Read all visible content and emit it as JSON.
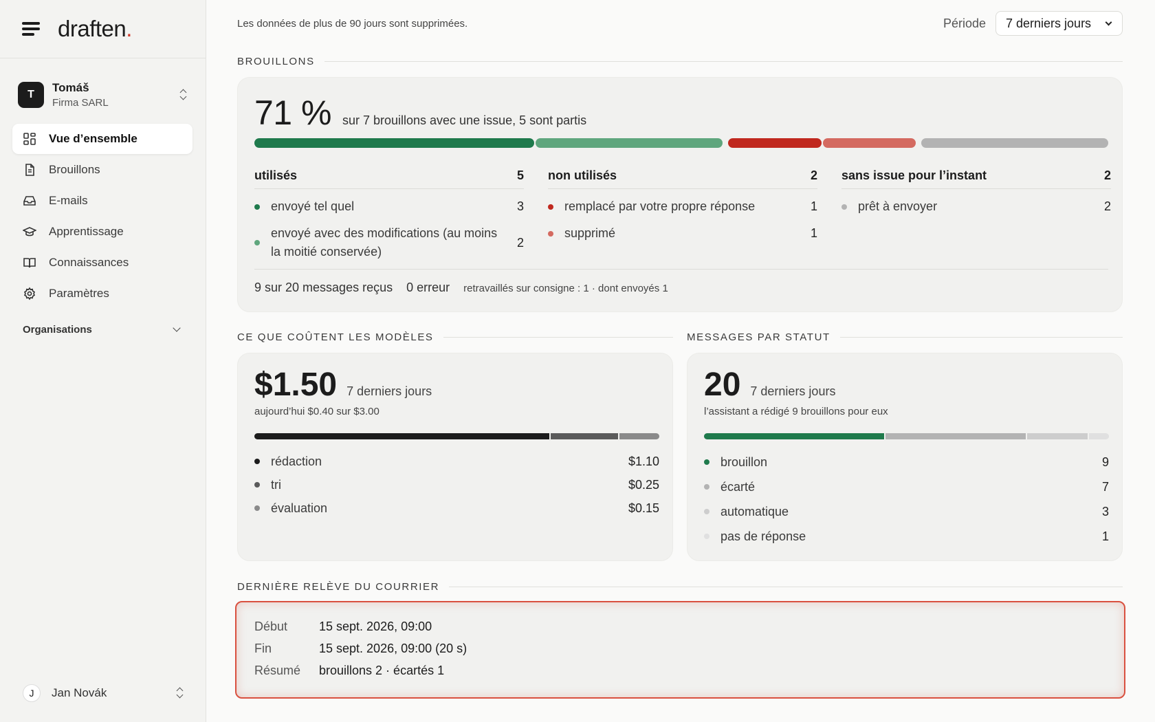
{
  "app": {
    "logo_text": "draften",
    "logo_dot": "."
  },
  "sidebar": {
    "account": {
      "initial": "T",
      "name": "Tomáš",
      "org": "Firma SARL"
    },
    "items": [
      {
        "label": "Vue d’ensemble",
        "icon": "grid-icon",
        "active": true
      },
      {
        "label": "Brouillons",
        "icon": "document-icon"
      },
      {
        "label": "E-mails",
        "icon": "inbox-icon"
      },
      {
        "label": "Apprentissage",
        "icon": "graduation-cap-icon"
      },
      {
        "label": "Connaissances",
        "icon": "book-icon"
      },
      {
        "label": "Paramètres",
        "icon": "gear-icon"
      }
    ],
    "organizations_label": "Organisations",
    "user": {
      "initial": "J",
      "name": "Jan Novák"
    }
  },
  "header": {
    "retention_notice": "Les données de plus de 90 jours sont supprimées.",
    "period_label": "Période",
    "period_value": "7 derniers jours"
  },
  "drafts": {
    "section_title": "BROUILLONS",
    "percent": "71 %",
    "summary": "sur 7 brouillons avec une issue, 5 sont partis",
    "bar_segments": [
      {
        "key": "tel-quel",
        "value": 3,
        "color": "#1f7a4c"
      },
      {
        "key": "modifies",
        "value": 2,
        "color": "#5fa67d"
      },
      {
        "key": "remplace",
        "value": 1,
        "color": "#c0281e"
      },
      {
        "key": "supprime",
        "value": 1,
        "color": "#d46a60"
      },
      {
        "key": "pret",
        "value": 2,
        "color": "#b3b3b3"
      }
    ],
    "groups": [
      {
        "title": "utilisés",
        "count": "5",
        "rows": [
          {
            "label": "envoyé tel quel",
            "value": "3",
            "color": "#1f7a4c"
          },
          {
            "label": "envoyé avec des modifications (au moins la moitié conservée)",
            "value": "2",
            "color": "#5fa67d"
          }
        ]
      },
      {
        "title": "non utilisés",
        "count": "2",
        "rows": [
          {
            "label": "remplacé par votre propre réponse",
            "value": "1",
            "color": "#c0281e"
          },
          {
            "label": "supprimé",
            "value": "1",
            "color": "#d46a60"
          }
        ]
      },
      {
        "title": "sans issue pour l’instant",
        "count": "2",
        "rows": [
          {
            "label": "prêt à envoyer",
            "value": "2",
            "color": "#b3b3b3"
          }
        ]
      }
    ],
    "footer": {
      "received": "9 sur 20 messages reçus",
      "errors": "0 erreur",
      "reworked": "retravaillés sur consigne : 1 · dont envoyés 1"
    }
  },
  "costs": {
    "section_title": "CE QUE COÛTENT LES MODÈLES",
    "total": "$1.50",
    "period": "7 derniers jours",
    "today": "aujourd’hui $0.40 sur $3.00",
    "rows": [
      {
        "label": "rédaction",
        "value": "$1.10",
        "amount": 1.1,
        "color": "#1c1c1c"
      },
      {
        "label": "tri",
        "value": "$0.25",
        "amount": 0.25,
        "color": "#5a5a5a"
      },
      {
        "label": "évaluation",
        "value": "$0.15",
        "amount": 0.15,
        "color": "#8a8a8a"
      }
    ]
  },
  "status": {
    "section_title": "MESSAGES PAR STATUT",
    "total": "20",
    "period": "7 derniers jours",
    "note": "l’assistant a rédigé 9 brouillons pour eux",
    "rows": [
      {
        "label": "brouillon",
        "value": "9",
        "color": "#1f7a4c"
      },
      {
        "label": "écarté",
        "value": "7",
        "color": "#b3b3b3"
      },
      {
        "label": "automatique",
        "value": "3",
        "color": "#cdcdcd"
      },
      {
        "label": "pas de réponse",
        "value": "1",
        "color": "#e0e0e0"
      }
    ]
  },
  "pickup": {
    "section_title": "DERNIÈRE RELÈVE DU COURRIER",
    "rows": [
      {
        "key": "Début",
        "value": "15 sept. 2026, 09:00"
      },
      {
        "key": "Fin",
        "value": "15 sept. 2026, 09:00 (20 s)"
      },
      {
        "key": "Résumé",
        "value": "brouillons 2 · écartés 1"
      }
    ]
  }
}
